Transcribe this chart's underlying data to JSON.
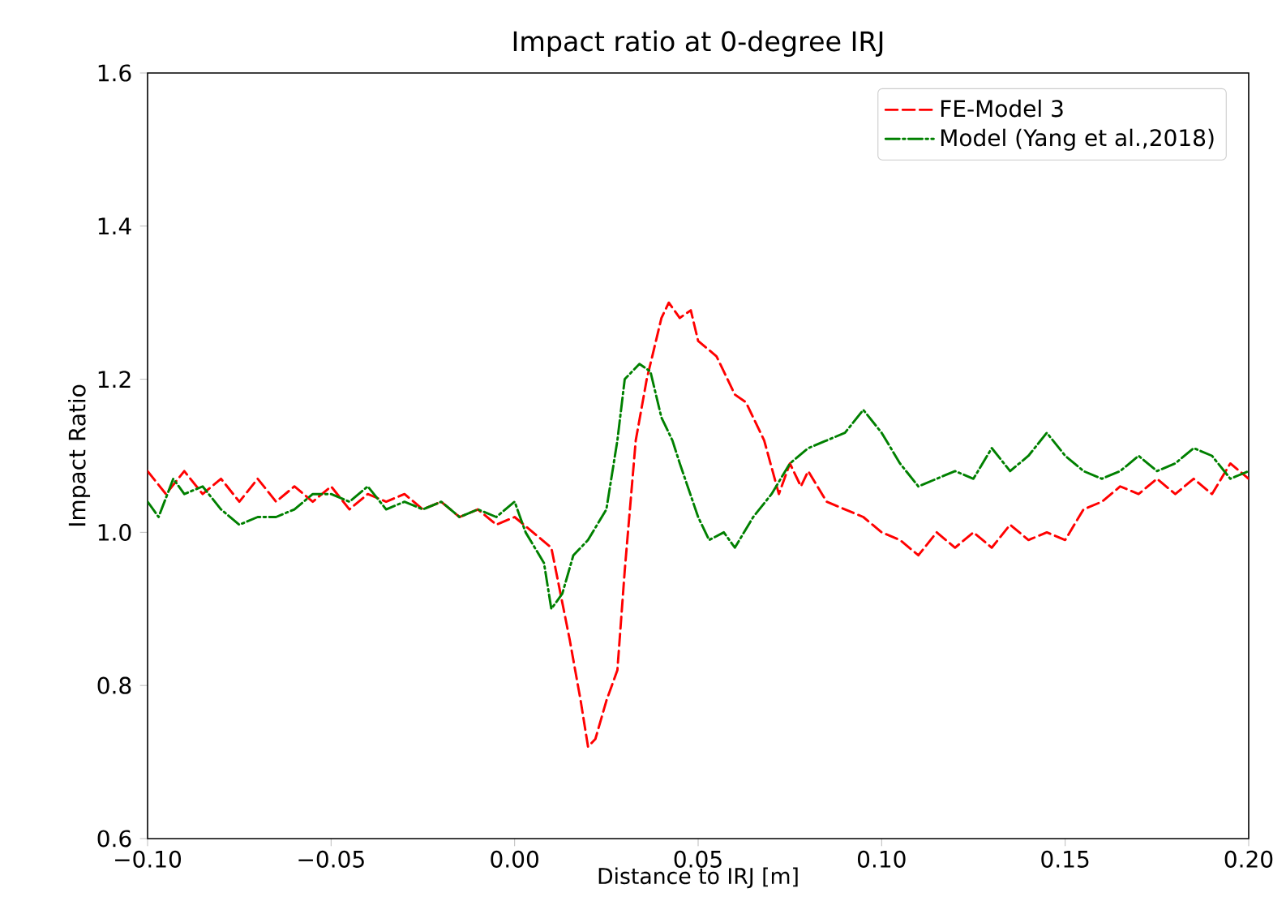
{
  "chart_data": {
    "type": "line",
    "title": "Impact ratio at 0-degree IRJ",
    "xlabel": "Distance to IRJ [m]",
    "ylabel": "Impact Ratio",
    "xlim": [
      -0.1,
      0.2
    ],
    "ylim": [
      0.6,
      1.6
    ],
    "xticks": [
      {
        "value": -0.1,
        "label": "−0.10"
      },
      {
        "value": -0.05,
        "label": "−0.05"
      },
      {
        "value": 0,
        "label": "0.00"
      },
      {
        "value": 0.05,
        "label": "0.05"
      },
      {
        "value": 0.1,
        "label": "0.10"
      },
      {
        "value": 0.15,
        "label": "0.15"
      },
      {
        "value": 0.2,
        "label": "0.20"
      }
    ],
    "yticks": [
      {
        "value": 0.6,
        "label": "0.6"
      },
      {
        "value": 0.8,
        "label": "0.8"
      },
      {
        "value": 1.0,
        "label": "1.0"
      },
      {
        "value": 1.2,
        "label": "1.2"
      },
      {
        "value": 1.4,
        "label": "1.4"
      },
      {
        "value": 1.6,
        "label": "1.6"
      }
    ],
    "legend": "top right",
    "grid": false,
    "series": [
      {
        "name": "FE-Model 3",
        "color": "#ff0000",
        "line_style": "dashed",
        "x": [
          -0.1,
          -0.095,
          -0.09,
          -0.085,
          -0.08,
          -0.075,
          -0.07,
          -0.065,
          -0.06,
          -0.055,
          -0.05,
          -0.045,
          -0.04,
          -0.035,
          -0.03,
          -0.025,
          -0.02,
          -0.015,
          -0.01,
          -0.005,
          0.0,
          0.005,
          0.01,
          0.015,
          0.018,
          0.02,
          0.022,
          0.025,
          0.028,
          0.03,
          0.033,
          0.036,
          0.04,
          0.042,
          0.045,
          0.048,
          0.05,
          0.055,
          0.06,
          0.063,
          0.068,
          0.072,
          0.075,
          0.078,
          0.08,
          0.085,
          0.09,
          0.095,
          0.1,
          0.105,
          0.11,
          0.115,
          0.12,
          0.125,
          0.13,
          0.135,
          0.14,
          0.145,
          0.15,
          0.155,
          0.16,
          0.165,
          0.17,
          0.175,
          0.18,
          0.185,
          0.19,
          0.195,
          0.2
        ],
        "values": [
          1.08,
          1.05,
          1.08,
          1.05,
          1.07,
          1.04,
          1.07,
          1.04,
          1.06,
          1.04,
          1.06,
          1.03,
          1.05,
          1.04,
          1.05,
          1.03,
          1.04,
          1.02,
          1.03,
          1.01,
          1.02,
          1.0,
          0.98,
          0.86,
          0.78,
          0.72,
          0.73,
          0.78,
          0.82,
          0.95,
          1.12,
          1.2,
          1.28,
          1.3,
          1.28,
          1.29,
          1.25,
          1.23,
          1.18,
          1.17,
          1.12,
          1.05,
          1.09,
          1.06,
          1.08,
          1.04,
          1.03,
          1.02,
          1.0,
          0.99,
          0.97,
          1.0,
          0.98,
          1.0,
          0.98,
          1.01,
          0.99,
          1.0,
          0.99,
          1.03,
          1.04,
          1.06,
          1.05,
          1.07,
          1.05,
          1.07,
          1.05,
          1.09,
          1.07
        ]
      },
      {
        "name": "Model (Yang et al.,2018)",
        "color": "#008000",
        "line_style": "dashdot",
        "x": [
          -0.1,
          -0.097,
          -0.093,
          -0.09,
          -0.085,
          -0.08,
          -0.075,
          -0.07,
          -0.065,
          -0.06,
          -0.055,
          -0.05,
          -0.045,
          -0.04,
          -0.035,
          -0.03,
          -0.025,
          -0.02,
          -0.015,
          -0.01,
          -0.005,
          0.0,
          0.003,
          0.008,
          0.01,
          0.013,
          0.016,
          0.02,
          0.025,
          0.028,
          0.03,
          0.034,
          0.037,
          0.04,
          0.043,
          0.045,
          0.05,
          0.053,
          0.057,
          0.06,
          0.065,
          0.07,
          0.075,
          0.08,
          0.085,
          0.09,
          0.095,
          0.1,
          0.105,
          0.11,
          0.115,
          0.12,
          0.125,
          0.13,
          0.135,
          0.14,
          0.145,
          0.15,
          0.155,
          0.16,
          0.165,
          0.17,
          0.175,
          0.18,
          0.185,
          0.19,
          0.195,
          0.2
        ],
        "values": [
          1.04,
          1.02,
          1.07,
          1.05,
          1.06,
          1.03,
          1.01,
          1.02,
          1.02,
          1.03,
          1.05,
          1.05,
          1.04,
          1.06,
          1.03,
          1.04,
          1.03,
          1.04,
          1.02,
          1.03,
          1.02,
          1.04,
          1.0,
          0.96,
          0.9,
          0.92,
          0.97,
          0.99,
          1.03,
          1.12,
          1.2,
          1.22,
          1.21,
          1.15,
          1.12,
          1.09,
          1.02,
          0.99,
          1.0,
          0.98,
          1.02,
          1.05,
          1.09,
          1.11,
          1.12,
          1.13,
          1.16,
          1.13,
          1.09,
          1.06,
          1.07,
          1.08,
          1.07,
          1.11,
          1.08,
          1.1,
          1.13,
          1.1,
          1.08,
          1.07,
          1.08,
          1.1,
          1.08,
          1.09,
          1.11,
          1.1,
          1.07,
          1.08
        ]
      }
    ]
  }
}
